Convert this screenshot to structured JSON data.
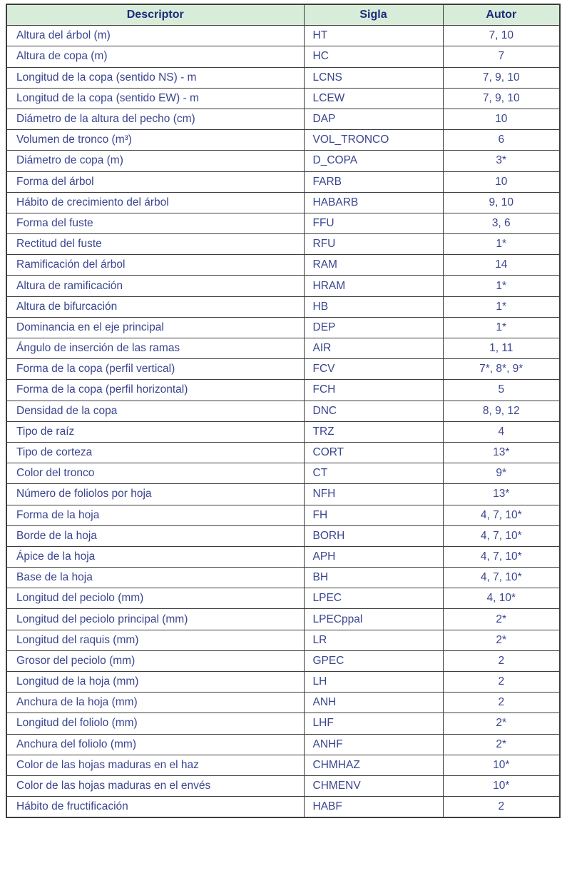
{
  "colors": {
    "header_bg": "#d8ecda",
    "header_text": "#1e2b7c",
    "body_text": "#3a458f",
    "border": "#3d3d3d",
    "page_bg": "#ffffff"
  },
  "table": {
    "columns": [
      "Descriptor",
      "Sigla",
      "Autor"
    ],
    "rows": [
      {
        "descriptor": "Altura del árbol (m)",
        "sigla": "HT",
        "autor": "7, 10"
      },
      {
        "descriptor": "Altura de copa (m)",
        "sigla": "HC",
        "autor": "7"
      },
      {
        "descriptor": "Longitud de la copa (sentido NS) - m",
        "sigla": "LCNS",
        "autor": "7, 9, 10"
      },
      {
        "descriptor": "Longitud de la copa (sentido EW) - m",
        "sigla": "LCEW",
        "autor": "7, 9, 10"
      },
      {
        "descriptor": "Diámetro de la altura del pecho (cm)",
        "sigla": "DAP",
        "autor": "10"
      },
      {
        "descriptor": "Volumen de tronco (m³)",
        "sigla": "VOL_TRONCO",
        "autor": "6"
      },
      {
        "descriptor": "Diámetro de copa (m)",
        "sigla": "D_COPA",
        "autor": "3*"
      },
      {
        "descriptor": "Forma del árbol",
        "sigla": "FARB",
        "autor": "10"
      },
      {
        "descriptor": "Hábito de crecimiento del árbol",
        "sigla": "HABARB",
        "autor": "9, 10"
      },
      {
        "descriptor": "Forma del fuste",
        "sigla": "FFU",
        "autor": "3, 6"
      },
      {
        "descriptor": "Rectitud del fuste",
        "sigla": "RFU",
        "autor": "1*"
      },
      {
        "descriptor": "Ramificación del árbol",
        "sigla": "RAM",
        "autor": "14"
      },
      {
        "descriptor": "Altura de ramificación",
        "sigla": "HRAM",
        "autor": "1*"
      },
      {
        "descriptor": "Altura de bifurcación",
        "sigla": "HB",
        "autor": "1*"
      },
      {
        "descriptor": "Dominancia en el eje principal",
        "sigla": "DEP",
        "autor": "1*"
      },
      {
        "descriptor": "Ángulo de inserción de las ramas",
        "sigla": "AIR",
        "autor": "1, 11"
      },
      {
        "descriptor": "Forma de la copa (perfil vertical)",
        "sigla": "FCV",
        "autor": "7*, 8*, 9*"
      },
      {
        "descriptor": "Forma de la copa (perfil horizontal)",
        "sigla": "FCH",
        "autor": "5"
      },
      {
        "descriptor": "Densidad de la copa",
        "sigla": "DNC",
        "autor": "8, 9, 12"
      },
      {
        "descriptor": "Tipo de raíz",
        "sigla": "TRZ",
        "autor": "4"
      },
      {
        "descriptor": "Tipo de corteza",
        "sigla": "CORT",
        "autor": "13*"
      },
      {
        "descriptor": "Color del tronco",
        "sigla": "CT",
        "autor": "9*"
      },
      {
        "descriptor": "Número de foliolos por hoja",
        "sigla": "NFH",
        "autor": "13*"
      },
      {
        "descriptor": "Forma de la hoja",
        "sigla": "FH",
        "autor": "4, 7, 10*"
      },
      {
        "descriptor": "Borde de la hoja",
        "sigla": "BORH",
        "autor": "4, 7, 10*"
      },
      {
        "descriptor": "Ápice de la hoja",
        "sigla": "APH",
        "autor": "4, 7, 10*"
      },
      {
        "descriptor": "Base de la hoja",
        "sigla": "BH",
        "autor": "4, 7, 10*"
      },
      {
        "descriptor": "Longitud del peciolo (mm)",
        "sigla": "LPEC",
        "autor": "4, 10*"
      },
      {
        "descriptor": "Longitud del peciolo principal (mm)",
        "sigla": "LPECppal",
        "autor": "2*"
      },
      {
        "descriptor": "Longitud del raquis (mm)",
        "sigla": "LR",
        "autor": "2*"
      },
      {
        "descriptor": "Grosor del peciolo (mm)",
        "sigla": "GPEC",
        "autor": "2"
      },
      {
        "descriptor": "Longitud de la hoja (mm)",
        "sigla": "LH",
        "autor": "2"
      },
      {
        "descriptor": "Anchura de la hoja (mm)",
        "sigla": "ANH",
        "autor": "2"
      },
      {
        "descriptor": "Longitud del foliolo (mm)",
        "sigla": "LHF",
        "autor": "2*"
      },
      {
        "descriptor": "Anchura del foliolo (mm)",
        "sigla": "ANHF",
        "autor": "2*"
      },
      {
        "descriptor": "Color de las hojas maduras en el haz",
        "sigla": "CHMHAZ",
        "autor": "10*"
      },
      {
        "descriptor": "Color de las hojas maduras en el envés",
        "sigla": "CHMENV",
        "autor": "10*"
      },
      {
        "descriptor": "Hábito de fructificación",
        "sigla": "HABF",
        "autor": "2"
      }
    ]
  }
}
